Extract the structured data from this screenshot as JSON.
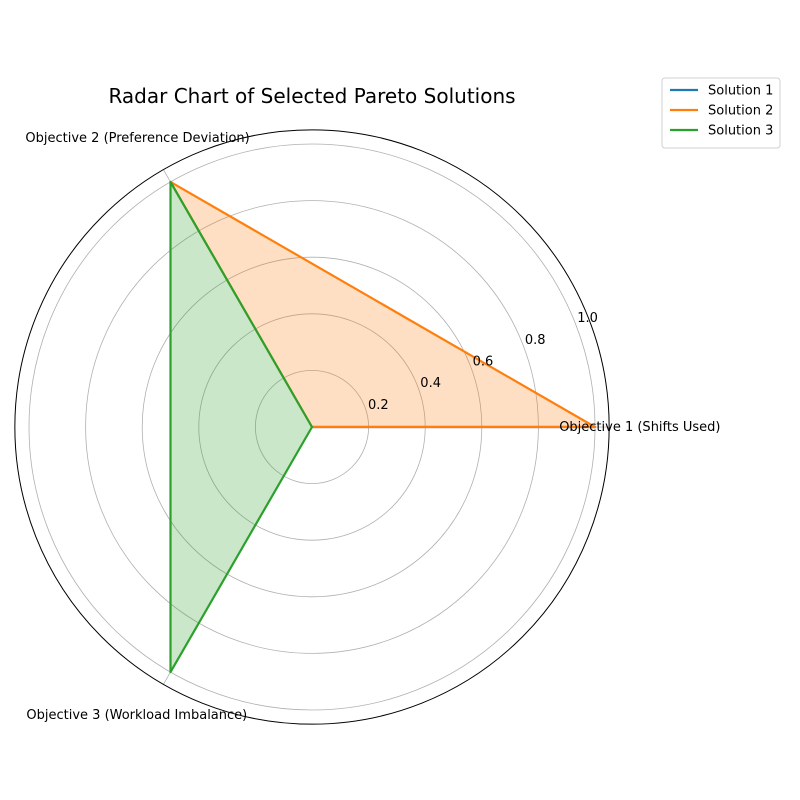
{
  "chart_data": {
    "type": "radar",
    "title": "Radar Chart of Selected Pareto Solutions",
    "axes": [
      "Objective 1 (Shifts Used)",
      "Objective 2 (Preference Deviation)",
      "Objective 3 (Workload Imbalance)"
    ],
    "radial_ticks": [
      "0.2",
      "0.4",
      "0.6",
      "0.8",
      "1.0"
    ],
    "radial_tick_values": [
      0.2,
      0.4,
      0.6,
      0.8,
      1.0
    ],
    "rlim": [
      0,
      1.05
    ],
    "grid": true,
    "legend_position": "top-right",
    "series": [
      {
        "name": "Solution 1",
        "values": [
          1.0,
          0.0,
          0.0
        ],
        "color": "#1f77b4"
      },
      {
        "name": "Solution 2",
        "values": [
          1.0,
          1.0,
          0.0
        ],
        "color": "#ff7f0e"
      },
      {
        "name": "Solution 3",
        "values": [
          0.0,
          1.0,
          1.0
        ],
        "color": "#2ca02c"
      }
    ]
  }
}
